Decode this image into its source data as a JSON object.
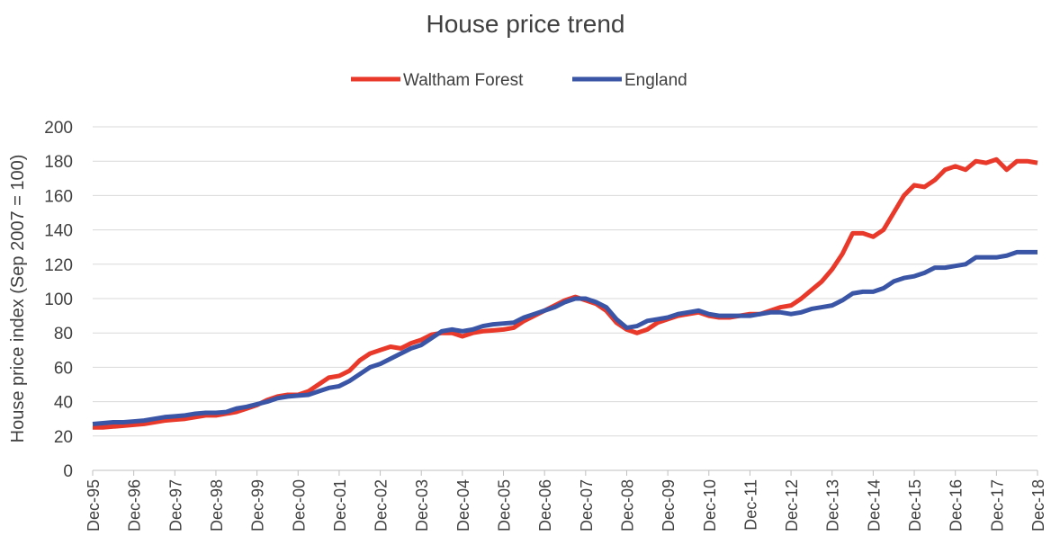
{
  "chart_data": {
    "type": "line",
    "title": "House price trend",
    "y_label": "House price index (Sep 2007 = 100)",
    "categories": [
      "Dec-95",
      null,
      null,
      null,
      "Dec-96",
      null,
      null,
      null,
      "Dec-97",
      null,
      null,
      null,
      "Dec-98",
      null,
      null,
      null,
      "Dec-99",
      null,
      null,
      null,
      "Dec-00",
      null,
      null,
      null,
      "Dec-01",
      null,
      null,
      null,
      "Dec-02",
      null,
      null,
      null,
      "Dec-03",
      null,
      null,
      null,
      "Dec-04",
      null,
      null,
      null,
      "Dec-05",
      null,
      null,
      null,
      "Dec-06",
      null,
      null,
      null,
      "Dec-07",
      null,
      null,
      null,
      "Dec-08",
      null,
      null,
      null,
      "Dec-09",
      null,
      null,
      null,
      "Dec-10",
      null,
      null,
      null,
      "Dec-11",
      null,
      null,
      null,
      "Dec-12",
      null,
      null,
      null,
      "Dec-13",
      null,
      null,
      null,
      "Dec-14",
      null,
      null,
      null,
      "Dec-15",
      null,
      null,
      null,
      "Dec-16",
      null,
      null,
      null,
      "Dec-17",
      null,
      null,
      null,
      "Dec-18"
    ],
    "series": [
      {
        "name": "Waltham Forest",
        "color": "#e8392b",
        "values": [
          25,
          25,
          25.5,
          26,
          26.5,
          27,
          28,
          29,
          29.5,
          30,
          31,
          32,
          32,
          33,
          34,
          36,
          38,
          41,
          43,
          44,
          44,
          46,
          50,
          54,
          55,
          58,
          64,
          68,
          70,
          72,
          71,
          74,
          76,
          79,
          80,
          80,
          78,
          80,
          81,
          81.5,
          82,
          83,
          87,
          90,
          93,
          96,
          99,
          101,
          99,
          97,
          93,
          86,
          82,
          80,
          82,
          86,
          88,
          90,
          91,
          92,
          90,
          89,
          89,
          90,
          91,
          91,
          93,
          95,
          96,
          100,
          105,
          110,
          117,
          126,
          138,
          138,
          136,
          140,
          150,
          160,
          166,
          165,
          169,
          175,
          177,
          175,
          180,
          179,
          181,
          175,
          180,
          180,
          179
        ]
      },
      {
        "name": "England",
        "color": "#3a55a6",
        "values": [
          27,
          27.5,
          28,
          28,
          28.5,
          29,
          30,
          31,
          31.5,
          32,
          33,
          33.5,
          33.5,
          34,
          36,
          37,
          38.5,
          40,
          42,
          43,
          43.5,
          44,
          46,
          48,
          49,
          52,
          56,
          60,
          62,
          65,
          68,
          71,
          73,
          77,
          81,
          82,
          81,
          82,
          84,
          85,
          85.5,
          86,
          89,
          91,
          93,
          95,
          98,
          100,
          100,
          98,
          95,
          88,
          83,
          84,
          87,
          88,
          89,
          91,
          92,
          93,
          91,
          90,
          90,
          90,
          90,
          91,
          92,
          92,
          91,
          92,
          94,
          95,
          96,
          99,
          103,
          104,
          104,
          106,
          110,
          112,
          113,
          115,
          118,
          118,
          119,
          120,
          124,
          124,
          124,
          125,
          127,
          127,
          127
        ]
      }
    ],
    "ylim": [
      0,
      200
    ],
    "yticks": [
      0,
      20,
      40,
      60,
      80,
      100,
      120,
      140,
      160,
      180,
      200
    ],
    "grid": true,
    "legend": "top"
  }
}
